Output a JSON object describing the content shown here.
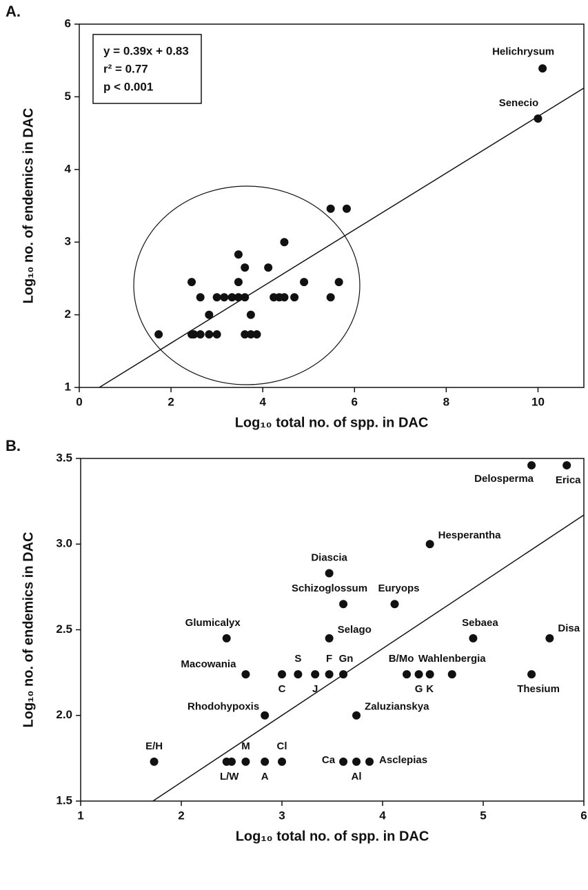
{
  "chart_data": [
    {
      "type": "scatter",
      "panel": "A.",
      "xlabel": "Log₁₀ total no. of spp. in DAC",
      "ylabel": "Log₁₀ no. of endemics in DAC",
      "annotation": [
        "y = 0.39x + 0.83",
        "r² = 0.77",
        "p < 0.001"
      ],
      "regression": {
        "slope": 0.39,
        "intercept": 0.83
      },
      "x": [
        1.73,
        2.45,
        2.5,
        2.64,
        2.83,
        3.0,
        3.61,
        3.74,
        3.87,
        2.83,
        3.74,
        2.64,
        3.0,
        3.16,
        3.33,
        3.47,
        3.61,
        4.24,
        4.36,
        4.47,
        4.69,
        5.48,
        2.45,
        3.47,
        4.9,
        5.66,
        3.61,
        4.12,
        3.47,
        4.47,
        5.48,
        5.83,
        10.1,
        10.0
      ],
      "y": [
        1.73,
        1.73,
        1.73,
        1.73,
        1.73,
        1.73,
        1.73,
        1.73,
        1.73,
        2.0,
        2.0,
        2.24,
        2.24,
        2.24,
        2.24,
        2.24,
        2.24,
        2.24,
        2.24,
        2.24,
        2.24,
        2.24,
        2.45,
        2.45,
        2.45,
        2.45,
        2.65,
        2.65,
        2.83,
        3.0,
        3.46,
        3.46,
        5.39,
        4.7
      ],
      "point_labels": [
        null,
        null,
        null,
        null,
        null,
        null,
        null,
        null,
        null,
        null,
        null,
        null,
        null,
        null,
        null,
        null,
        null,
        null,
        null,
        null,
        null,
        null,
        null,
        null,
        null,
        null,
        null,
        null,
        null,
        null,
        null,
        null,
        "Helichrysum",
        "Senecio"
      ],
      "xlim": [
        0,
        11
      ],
      "ylim": [
        1,
        6
      ],
      "xticks": [
        0,
        2,
        4,
        6,
        8,
        10
      ],
      "yticks": [
        1,
        2,
        3,
        4,
        5,
        6
      ],
      "color": "#111111"
    },
    {
      "type": "scatter",
      "panel": "B.",
      "xlabel": "Log₁₀ total no. of spp. in DAC",
      "ylabel": "Log₁₀ no. of endemics in DAC",
      "regression": {
        "slope": 0.39,
        "intercept": 0.83
      },
      "x": [
        1.73,
        2.45,
        2.5,
        2.64,
        2.83,
        3.0,
        3.61,
        3.74,
        3.87,
        2.83,
        3.74,
        2.64,
        3.0,
        3.16,
        3.33,
        3.47,
        3.61,
        4.24,
        4.36,
        4.47,
        4.69,
        5.48,
        2.45,
        3.47,
        4.9,
        5.66,
        3.61,
        4.12,
        3.47,
        4.47,
        5.48,
        5.83
      ],
      "y": [
        1.73,
        1.73,
        1.73,
        1.73,
        1.73,
        1.73,
        1.73,
        1.73,
        1.73,
        2.0,
        2.0,
        2.24,
        2.24,
        2.24,
        2.24,
        2.24,
        2.24,
        2.24,
        2.24,
        2.24,
        2.24,
        2.24,
        2.45,
        2.45,
        2.45,
        2.45,
        2.65,
        2.65,
        2.83,
        3.0,
        3.46,
        3.46
      ],
      "point_labels": [
        "E/H",
        "L/W",
        null,
        "M",
        "A",
        "Cl",
        "Ca",
        "Al",
        "Asclepias",
        "Rhodohypoxis",
        "Zaluzianskya",
        "Macowania",
        "C",
        "S",
        "J",
        "F",
        "Gn",
        "B/Mo",
        "G",
        "K",
        "Wahlenbergia",
        "Thesium",
        "Glumicalyx",
        "Selago",
        "Sebaea",
        "Disa",
        "Schizoglossum",
        "Euryops",
        "Diascia",
        "Hesperantha",
        "Delosperma",
        "Erica"
      ],
      "xlim": [
        1,
        6
      ],
      "ylim": [
        1.5,
        3.5
      ],
      "xticks": [
        1,
        2,
        3,
        4,
        5,
        6
      ],
      "yticks": [
        {
          "value": 1.5,
          "label": "1.5"
        },
        {
          "value": 2.0,
          "label": "2.0"
        },
        {
          "value": 2.5,
          "label": "2.5"
        },
        {
          "value": 3.0,
          "label": "3.0"
        },
        {
          "value": 3.5,
          "label": "3.5"
        }
      ],
      "color": "#111111"
    }
  ]
}
